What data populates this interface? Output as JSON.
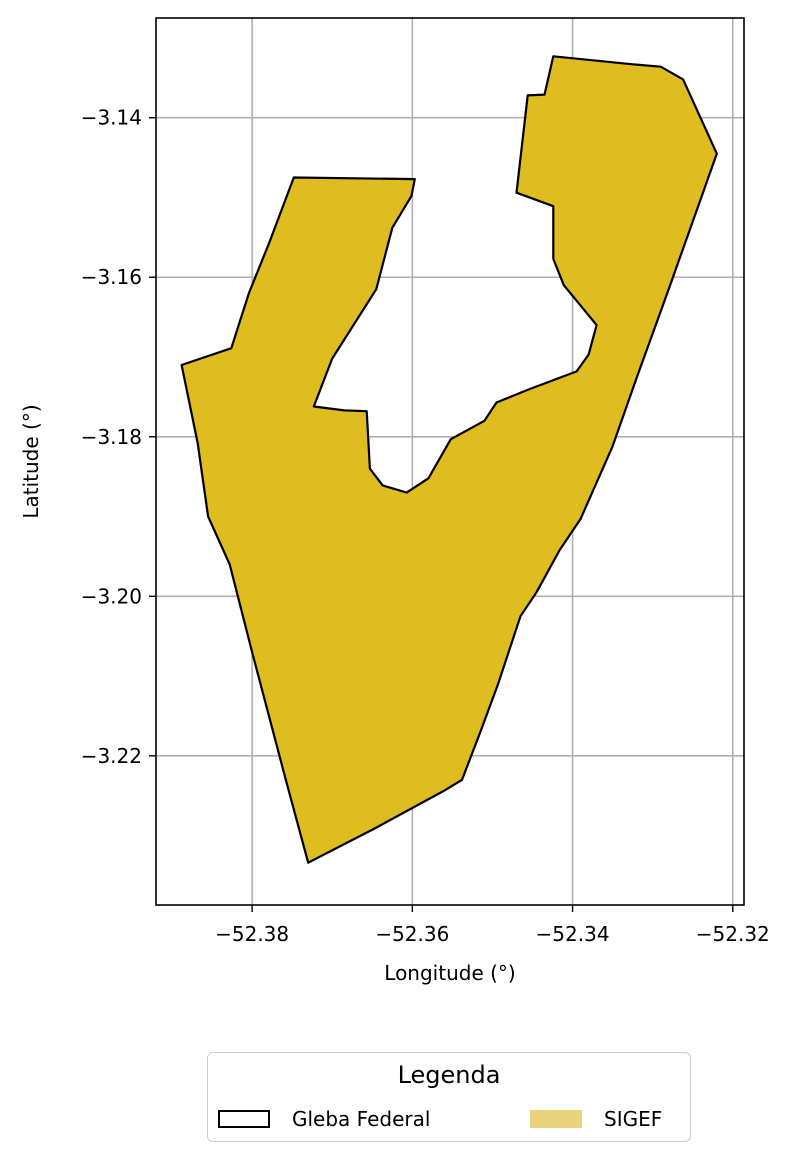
{
  "chart_data": {
    "type": "map",
    "xlabel": "Longitude (°)",
    "ylabel": "Latitude (°)",
    "xlim": [
      -52.392,
      -52.3186
    ],
    "ylim": [
      -3.2387,
      -3.1275
    ],
    "xticks": [
      -52.38,
      -52.36,
      -52.34,
      -52.32
    ],
    "xtick_labels": [
      "−52.38",
      "−52.36",
      "−52.34",
      "−52.32"
    ],
    "yticks": [
      -3.14,
      -3.16,
      -3.18,
      -3.2,
      -3.22
    ],
    "ytick_labels": [
      "−3.14",
      "−3.16",
      "−3.18",
      "−3.20",
      "−3.22"
    ],
    "grid": true,
    "layers": [
      {
        "name": "SIGEF",
        "fill": "#dfbc20",
        "stroke": "#000000",
        "coordinates": [
          [
            -52.3424,
            -3.1323
          ],
          [
            -52.3325,
            -3.1333
          ],
          [
            -52.329,
            -3.1336
          ],
          [
            -52.3262,
            -3.1352
          ],
          [
            -52.322,
            -3.1445
          ],
          [
            -52.324,
            -3.1502
          ],
          [
            -52.328,
            -3.1615
          ],
          [
            -52.332,
            -3.1726
          ],
          [
            -52.335,
            -3.1812
          ],
          [
            -52.339,
            -3.1903
          ],
          [
            -52.3416,
            -3.1942
          ],
          [
            -52.3445,
            -3.1995
          ],
          [
            -52.3465,
            -3.2025
          ],
          [
            -52.3493,
            -3.211
          ],
          [
            -52.3515,
            -3.217
          ],
          [
            -52.3538,
            -3.223
          ],
          [
            -52.3559,
            -3.2243
          ],
          [
            -52.3645,
            -3.229
          ],
          [
            -52.373,
            -3.2334
          ],
          [
            -52.3758,
            -3.223
          ],
          [
            -52.38,
            -3.207
          ],
          [
            -52.3828,
            -3.196
          ],
          [
            -52.3855,
            -3.19
          ],
          [
            -52.3868,
            -3.1808
          ],
          [
            -52.3888,
            -3.171
          ],
          [
            -52.3826,
            -3.1689
          ],
          [
            -52.3804,
            -3.162
          ],
          [
            -52.3778,
            -3.1555
          ],
          [
            -52.3748,
            -3.1475
          ],
          [
            -52.3597,
            -3.1477
          ],
          [
            -52.3601,
            -3.1498
          ],
          [
            -52.3625,
            -3.1538
          ],
          [
            -52.3645,
            -3.1615
          ],
          [
            -52.37,
            -3.1702
          ],
          [
            -52.3723,
            -3.1762
          ],
          [
            -52.3685,
            -3.1767
          ],
          [
            -52.3657,
            -3.1768
          ],
          [
            -52.3653,
            -3.184
          ],
          [
            -52.3637,
            -3.1861
          ],
          [
            -52.3607,
            -3.187
          ],
          [
            -52.358,
            -3.1852
          ],
          [
            -52.3552,
            -3.1803
          ],
          [
            -52.351,
            -3.178
          ],
          [
            -52.3495,
            -3.1757
          ],
          [
            -52.3453,
            -3.174
          ],
          [
            -52.3395,
            -3.1718
          ],
          [
            -52.338,
            -3.1697
          ],
          [
            -52.337,
            -3.166
          ],
          [
            -52.3411,
            -3.161
          ],
          [
            -52.3424,
            -3.1577
          ],
          [
            -52.3424,
            -3.1511
          ],
          [
            -52.347,
            -3.1494
          ],
          [
            -52.3456,
            -3.1372
          ],
          [
            -52.3435,
            -3.1371
          ]
        ]
      }
    ],
    "legend": {
      "title": "Legenda",
      "placement": "bottom-center",
      "entries": [
        {
          "label": "Gleba Federal",
          "style": "outline",
          "color": "#000000"
        },
        {
          "label": "SIGEF",
          "style": "fill",
          "color": "#e8d27a"
        }
      ]
    }
  }
}
